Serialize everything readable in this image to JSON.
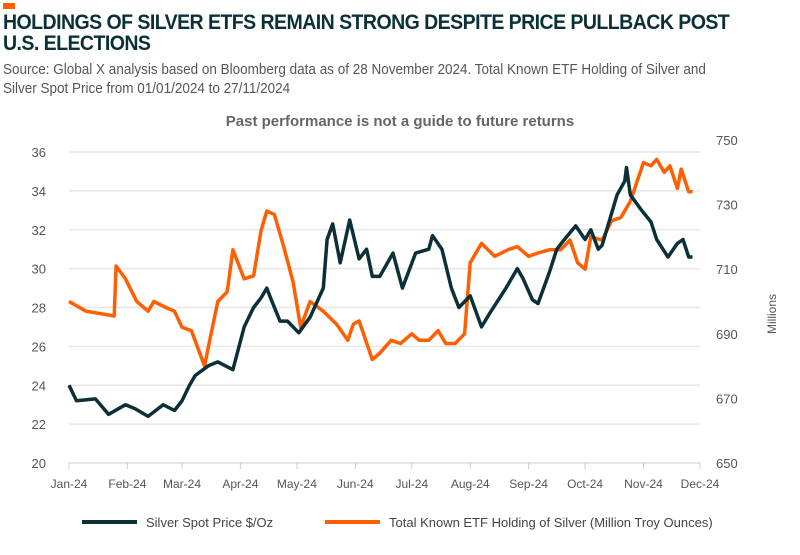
{
  "colors": {
    "accent": "#ff5f00",
    "silver": "#0b3038",
    "etf": "#ff5f00"
  },
  "title": "HOLDINGS OF SILVER ETFS REMAIN STRONG DESPITE PRICE PULLBACK POST U.S. ELECTIONS",
  "subtitle": "Source: Global X analysis based on Bloomberg data as of 28 November 2024. Total Known ETF Holding of Silver and Silver Spot Price from 01/01/2024 to 27/11/2024",
  "note": "Past performance is not a guide to future returns",
  "chart_data": {
    "type": "line",
    "x_ticks": [
      "Jan-24",
      "Feb-24",
      "Mar-24",
      "Apr-24",
      "May-24",
      "Jun-24",
      "Jul-24",
      "Aug-24",
      "Sep-24",
      "Oct-24",
      "Nov-24",
      "Dec-24"
    ],
    "xlim": [
      "2024-01-01",
      "2024-12-01"
    ],
    "y_left": {
      "ylim": [
        20,
        36
      ],
      "ticks": [
        20,
        22,
        24,
        26,
        28,
        30,
        32,
        34,
        36
      ],
      "label": ""
    },
    "y_right": {
      "ylim": [
        650,
        750
      ],
      "ticks": [
        650,
        670,
        690,
        710,
        730,
        750
      ],
      "label": "Millions"
    },
    "grid": true,
    "legend": "bottom",
    "series": [
      {
        "name": "Silver Spot Price $/Oz",
        "axis": "left",
        "points": [
          [
            "2024-01-01",
            24.0
          ],
          [
            "2024-01-05",
            23.2
          ],
          [
            "2024-01-15",
            23.3
          ],
          [
            "2024-01-22",
            22.5
          ],
          [
            "2024-01-31",
            23.0
          ],
          [
            "2024-02-05",
            22.8
          ],
          [
            "2024-02-12",
            22.4
          ],
          [
            "2024-02-20",
            23.0
          ],
          [
            "2024-02-26",
            22.7
          ],
          [
            "2024-03-01",
            23.2
          ],
          [
            "2024-03-05",
            24.0
          ],
          [
            "2024-03-08",
            24.5
          ],
          [
            "2024-03-15",
            25.0
          ],
          [
            "2024-03-20",
            25.2
          ],
          [
            "2024-03-28",
            24.8
          ],
          [
            "2024-04-03",
            27.0
          ],
          [
            "2024-04-08",
            28.0
          ],
          [
            "2024-04-12",
            28.5
          ],
          [
            "2024-04-15",
            29.0
          ],
          [
            "2024-04-17",
            28.5
          ],
          [
            "2024-04-22",
            27.3
          ],
          [
            "2024-04-26",
            27.3
          ],
          [
            "2024-05-02",
            26.7
          ],
          [
            "2024-05-08",
            27.5
          ],
          [
            "2024-05-15",
            29.0
          ],
          [
            "2024-05-17",
            31.5
          ],
          [
            "2024-05-20",
            32.3
          ],
          [
            "2024-05-24",
            30.3
          ],
          [
            "2024-05-29",
            32.5
          ],
          [
            "2024-06-03",
            30.5
          ],
          [
            "2024-06-07",
            31.0
          ],
          [
            "2024-06-10",
            29.6
          ],
          [
            "2024-06-14",
            29.6
          ],
          [
            "2024-06-21",
            30.8
          ],
          [
            "2024-06-26",
            29.0
          ],
          [
            "2024-07-03",
            30.8
          ],
          [
            "2024-07-10",
            31.0
          ],
          [
            "2024-07-12",
            31.7
          ],
          [
            "2024-07-17",
            31.0
          ],
          [
            "2024-07-22",
            29.0
          ],
          [
            "2024-07-26",
            28.0
          ],
          [
            "2024-08-01",
            28.6
          ],
          [
            "2024-08-07",
            27.0
          ],
          [
            "2024-08-12",
            27.8
          ],
          [
            "2024-08-20",
            29.0
          ],
          [
            "2024-08-26",
            30.0
          ],
          [
            "2024-08-29",
            29.5
          ],
          [
            "2024-09-03",
            28.4
          ],
          [
            "2024-09-06",
            28.2
          ],
          [
            "2024-09-12",
            29.8
          ],
          [
            "2024-09-16",
            31.0
          ],
          [
            "2024-09-20",
            31.5
          ],
          [
            "2024-09-26",
            32.2
          ],
          [
            "2024-10-01",
            31.5
          ],
          [
            "2024-10-04",
            32.0
          ],
          [
            "2024-10-08",
            31.0
          ],
          [
            "2024-10-10",
            31.2
          ],
          [
            "2024-10-18",
            33.8
          ],
          [
            "2024-10-22",
            34.5
          ],
          [
            "2024-10-23",
            35.2
          ],
          [
            "2024-10-25",
            33.8
          ],
          [
            "2024-10-31",
            33.0
          ],
          [
            "2024-11-05",
            32.4
          ],
          [
            "2024-11-08",
            31.5
          ],
          [
            "2024-11-14",
            30.6
          ],
          [
            "2024-11-19",
            31.3
          ],
          [
            "2024-11-22",
            31.5
          ],
          [
            "2024-11-25",
            30.6
          ],
          [
            "2024-11-27",
            30.6
          ]
        ]
      },
      {
        "name": "Total Known ETF Holding of Silver (Million Troy Ounces)",
        "axis": "right",
        "points": [
          [
            "2024-01-01",
            700
          ],
          [
            "2024-01-10",
            697
          ],
          [
            "2024-01-25",
            695.5
          ],
          [
            "2024-01-26",
            711
          ],
          [
            "2024-01-31",
            707
          ],
          [
            "2024-02-06",
            700
          ],
          [
            "2024-02-12",
            697
          ],
          [
            "2024-02-15",
            700
          ],
          [
            "2024-02-22",
            698
          ],
          [
            "2024-02-26",
            697
          ],
          [
            "2024-03-01",
            692
          ],
          [
            "2024-03-06",
            691
          ],
          [
            "2024-03-13",
            680
          ],
          [
            "2024-03-15",
            686
          ],
          [
            "2024-03-20",
            700
          ],
          [
            "2024-03-25",
            703
          ],
          [
            "2024-03-28",
            716
          ],
          [
            "2024-04-03",
            707
          ],
          [
            "2024-04-08",
            708
          ],
          [
            "2024-04-12",
            722
          ],
          [
            "2024-04-15",
            728
          ],
          [
            "2024-04-19",
            727
          ],
          [
            "2024-04-24",
            717
          ],
          [
            "2024-04-29",
            706
          ],
          [
            "2024-05-03",
            692
          ],
          [
            "2024-05-08",
            700
          ],
          [
            "2024-05-15",
            697
          ],
          [
            "2024-05-22",
            693
          ],
          [
            "2024-05-28",
            688
          ],
          [
            "2024-05-31",
            693
          ],
          [
            "2024-06-03",
            694
          ],
          [
            "2024-06-10",
            682
          ],
          [
            "2024-06-14",
            684
          ],
          [
            "2024-06-20",
            688
          ],
          [
            "2024-06-25",
            687
          ],
          [
            "2024-07-01",
            690
          ],
          [
            "2024-07-05",
            688
          ],
          [
            "2024-07-10",
            688
          ],
          [
            "2024-07-15",
            691
          ],
          [
            "2024-07-19",
            687
          ],
          [
            "2024-07-24",
            687
          ],
          [
            "2024-07-29",
            690
          ],
          [
            "2024-08-01",
            712
          ],
          [
            "2024-08-07",
            718
          ],
          [
            "2024-08-14",
            714
          ],
          [
            "2024-08-21",
            716
          ],
          [
            "2024-08-26",
            717
          ],
          [
            "2024-09-01",
            714
          ],
          [
            "2024-09-06",
            715
          ],
          [
            "2024-09-12",
            716
          ],
          [
            "2024-09-18",
            716
          ],
          [
            "2024-09-23",
            719
          ],
          [
            "2024-09-27",
            712
          ],
          [
            "2024-10-01",
            710
          ],
          [
            "2024-10-04",
            720
          ],
          [
            "2024-10-10",
            719
          ],
          [
            "2024-10-15",
            725
          ],
          [
            "2024-10-20",
            726
          ],
          [
            "2024-10-25",
            731
          ],
          [
            "2024-11-01",
            743
          ],
          [
            "2024-11-05",
            742
          ],
          [
            "2024-11-08",
            744
          ],
          [
            "2024-11-12",
            740
          ],
          [
            "2024-11-15",
            742
          ],
          [
            "2024-11-19",
            735
          ],
          [
            "2024-11-21",
            741
          ],
          [
            "2024-11-25",
            734
          ],
          [
            "2024-11-27",
            734
          ]
        ]
      }
    ]
  }
}
